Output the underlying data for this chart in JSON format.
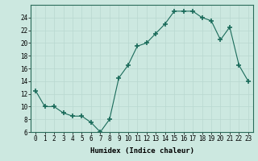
{
  "x": [
    0,
    1,
    2,
    3,
    4,
    5,
    6,
    7,
    8,
    9,
    10,
    11,
    12,
    13,
    14,
    15,
    16,
    17,
    18,
    19,
    20,
    21,
    22,
    23
  ],
  "y": [
    12.5,
    10,
    10,
    9,
    8.5,
    8.5,
    7.5,
    6,
    8,
    14.5,
    16.5,
    19.5,
    20,
    21.5,
    23,
    25,
    25,
    25,
    24,
    23.5,
    20.5,
    22.5,
    16.5,
    14
  ],
  "line_color": "#1a6b5a",
  "marker": "+",
  "marker_size": 4,
  "marker_lw": 1.2,
  "bg_color": "#cce8e0",
  "grid_color": "#b8d8d0",
  "xlabel": "Humidex (Indice chaleur)",
  "ylim": [
    6,
    26
  ],
  "xlim": [
    -0.5,
    23.5
  ],
  "yticks": [
    6,
    8,
    10,
    12,
    14,
    16,
    18,
    20,
    22,
    24
  ],
  "xtick_labels": [
    "0",
    "1",
    "2",
    "3",
    "4",
    "5",
    "6",
    "7",
    "8",
    "9",
    "10",
    "11",
    "12",
    "13",
    "14",
    "15",
    "16",
    "17",
    "18",
    "19",
    "20",
    "21",
    "22",
    "23"
  ],
  "tick_fontsize": 5.5,
  "xlabel_fontsize": 6.5,
  "linewidth": 0.8
}
